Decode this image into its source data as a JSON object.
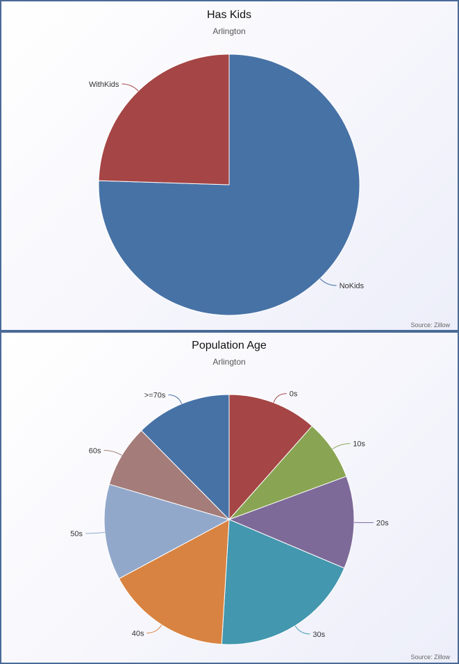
{
  "chart_data": [
    {
      "type": "pie",
      "title": "Has Kids",
      "subtitle": "Arlington",
      "credit": "Source: Zillow",
      "categories": [
        "NoKids",
        "WithKids"
      ],
      "values": [
        75.5,
        24.5
      ],
      "colors": [
        "#4772a6",
        "#a54545"
      ]
    },
    {
      "type": "pie",
      "title": "Population Age",
      "subtitle": "Arlington",
      "credit": "Source: Zillow",
      "categories": [
        "0s",
        "10s",
        "20s",
        "30s",
        "40s",
        "50s",
        "60s",
        ">=70s"
      ],
      "values": [
        10.9,
        7.4,
        11.3,
        18.5,
        15.3,
        11.7,
        7.6,
        11.7
      ],
      "colors": [
        "#a54545",
        "#89a553",
        "#7e6a99",
        "#4397ae",
        "#d88341",
        "#92a8cb",
        "#a47c79",
        "#4772a6"
      ]
    }
  ]
}
